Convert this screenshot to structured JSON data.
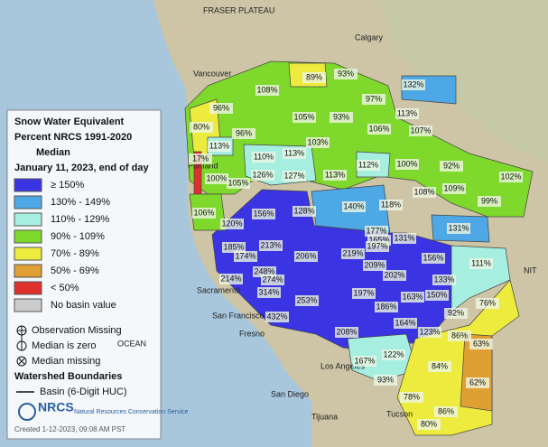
{
  "legend": {
    "title_lines": [
      "Snow Water Equivalent",
      "Percent NRCS 1991-2020",
      "Median",
      "January 11, 2023, end of day"
    ],
    "items": [
      {
        "label": "≥ 150%",
        "color": "#3a34e2"
      },
      {
        "label": "130% - 149%",
        "color": "#4ea8e6"
      },
      {
        "label": "110% - 129%",
        "color": "#a6efe0"
      },
      {
        "label": "90% - 109%",
        "color": "#7fd82c"
      },
      {
        "label": "70% - 89%",
        "color": "#eceb3e"
      },
      {
        "label": "50% - 69%",
        "color": "#df9f33"
      },
      {
        "label": "< 50%",
        "color": "#e0302e"
      },
      {
        "label": "No basin value",
        "color": "#cccccc"
      }
    ],
    "symbols": [
      "Observation Missing",
      "Median is zero",
      "Median missing"
    ],
    "boundaries_title": "Watershed Boundaries",
    "boundary_item": "Basin (6-Digit HUC)",
    "logo": "NRCS",
    "logo_sub": "Natural Resources Conservation Service",
    "created": "Created 1-12-2023, 09:08 AM PST"
  },
  "places": [
    "FRASER PLATEAU",
    "Calgary",
    "Vancouver",
    "Portland",
    "Sacramento",
    "San Francisco",
    "Fresno",
    "Los Angeles",
    "San Diego",
    "Tijuana",
    "Tucson",
    "OCEAN",
    "NIT"
  ],
  "basins": [
    "108%",
    "89%",
    "93%",
    "132%",
    "96%",
    "105%",
    "93%",
    "97%",
    "113%",
    "80%",
    "96%",
    "106%",
    "107%",
    "113%",
    "103%",
    "17%",
    "110%",
    "113%",
    "112%",
    "100%",
    "92%",
    "100%",
    "105%",
    "126%",
    "127%",
    "113%",
    "108%",
    "109%",
    "102%",
    "99%",
    "106%",
    "156%",
    "128%",
    "140%",
    "118%",
    "120%",
    "131%",
    "177%",
    "165%",
    "131%",
    "185%",
    "213%",
    "219%",
    "197%",
    "174%",
    "206%",
    "156%",
    "111%",
    "209%",
    "248%",
    "214%",
    "274%",
    "202%",
    "133%",
    "314%",
    "197%",
    "163%",
    "150%",
    "76%",
    "253%",
    "186%",
    "92%",
    "432%",
    "164%",
    "123%",
    "86%",
    "63%",
    "208%",
    "167%",
    "122%",
    "84%",
    "62%",
    "93%",
    "78%",
    "86%",
    "80%"
  ]
}
